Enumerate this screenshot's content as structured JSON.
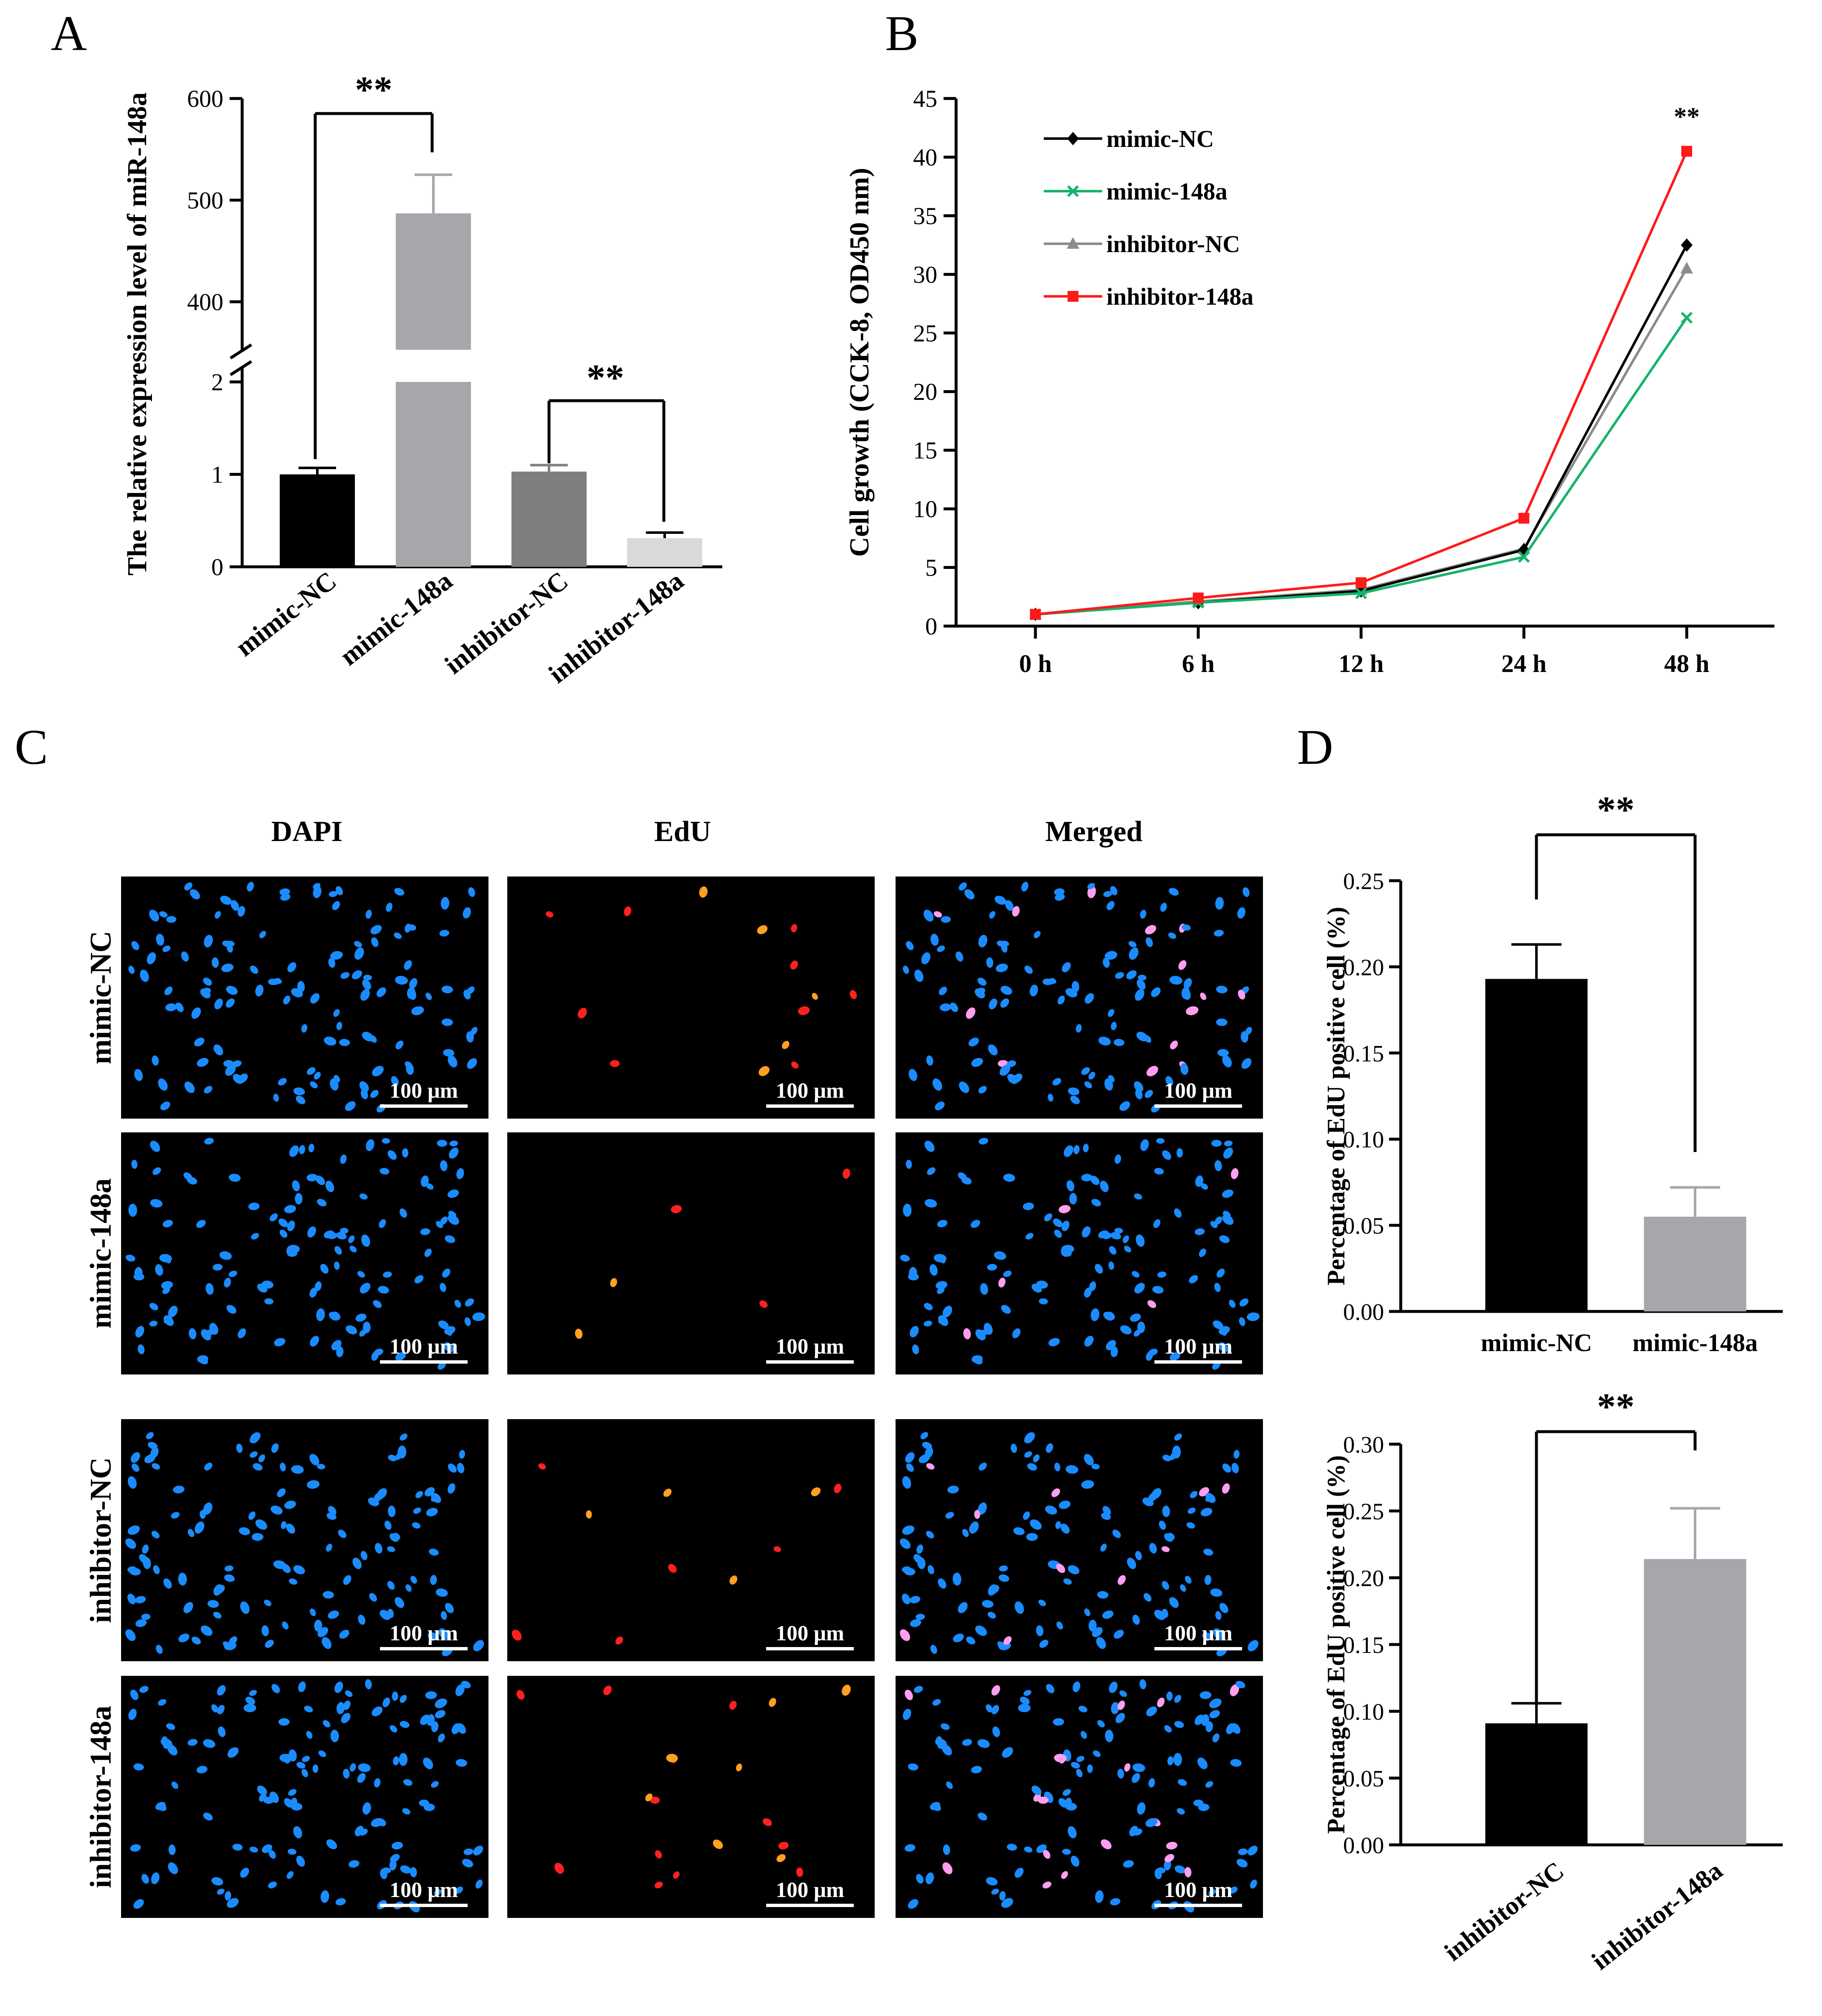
{
  "chart_data": [
    {
      "id": "A",
      "panel_letter": "A",
      "type": "bar",
      "ylabel": "The relative expression level of miR-148a",
      "categories": [
        "mimic-NC",
        "mimic-148a",
        "inhibitor-NC",
        "inhibitor-148a"
      ],
      "values": [
        1.0,
        487,
        1.03,
        0.31
      ],
      "errors": [
        0.07,
        38,
        0.07,
        0.06
      ],
      "colors": [
        "#000000",
        "#a6a6ab",
        "#7f7f7f",
        "#d9d9d9"
      ],
      "broken_axis": true,
      "lower_range": [
        0,
        2
      ],
      "lower_ticks": [
        "0",
        "1",
        "2"
      ],
      "upper_range": [
        340,
        600
      ],
      "upper_ticks": [
        "400",
        "500",
        "600"
      ],
      "significance": [
        {
          "between": [
            0,
            1
          ],
          "label": "**"
        },
        {
          "between": [
            2,
            3
          ],
          "label": "**"
        }
      ]
    },
    {
      "id": "B",
      "panel_letter": "B",
      "type": "line",
      "ylabel": "Cell growth (CCK-8, OD450 nm)",
      "categories": [
        "0 h",
        "6 h",
        "12 h",
        "24 h",
        "48 h"
      ],
      "ylim": [
        0,
        45
      ],
      "yticks": [
        "0",
        "5",
        "10",
        "15",
        "20",
        "25",
        "30",
        "35",
        "40",
        "45"
      ],
      "legend_position": "top-left",
      "series": [
        {
          "name": "mimic-NC",
          "values": [
            1.0,
            2.0,
            3.0,
            6.5,
            32.5
          ],
          "color": "#000000",
          "marker": "diamond"
        },
        {
          "name": "mimic-148a",
          "values": [
            1.0,
            2.0,
            2.8,
            5.9,
            26.3
          ],
          "color": "#16b36b",
          "marker": "cross"
        },
        {
          "name": "inhibitor-NC",
          "values": [
            1.0,
            2.1,
            3.1,
            6.6,
            30.5
          ],
          "color": "#8c8c8c",
          "marker": "triangle"
        },
        {
          "name": "inhibitor-148a",
          "values": [
            1.0,
            2.4,
            3.7,
            9.2,
            40.5
          ],
          "color": "#ff1a1a",
          "marker": "square"
        }
      ],
      "annotation": {
        "category": "48 h",
        "label": "**"
      }
    },
    {
      "id": "D1",
      "panel_letter": "D",
      "type": "bar",
      "ylabel": "Percentage of EdU  positive cell (%)",
      "categories": [
        "mimic-NC",
        "mimic-148a"
      ],
      "values": [
        0.193,
        0.055
      ],
      "errors": [
        0.02,
        0.017
      ],
      "colors": [
        "#000000",
        "#a6a6ab"
      ],
      "ylim": [
        0,
        0.25
      ],
      "yticks": [
        "0.00",
        "0.05",
        "0.10",
        "0.15",
        "0.20",
        "0.25"
      ],
      "significance": [
        {
          "between": [
            0,
            1
          ],
          "label": "**"
        }
      ]
    },
    {
      "id": "D2",
      "type": "bar",
      "ylabel": "Percentage of EdU  positive cell (%)",
      "categories": [
        "inhibitor-NC",
        "inhibitor-148a"
      ],
      "values": [
        0.091,
        0.214
      ],
      "errors": [
        0.015,
        0.038
      ],
      "colors": [
        "#000000",
        "#a6a6ab"
      ],
      "ylim": [
        0,
        0.3
      ],
      "yticks": [
        "0.00",
        "0.05",
        "0.10",
        "0.15",
        "0.20",
        "0.25",
        "0.30"
      ],
      "significance": [
        {
          "between": [
            0,
            1
          ],
          "label": "**"
        }
      ]
    }
  ],
  "panel_c": {
    "panel_letter": "C",
    "columns": [
      "DAPI",
      "EdU",
      "Merged"
    ],
    "rows": [
      "mimic-NC",
      "mimic-148a",
      "inhibitor-NC",
      "inhibitor-148a"
    ],
    "scale_bar_label": "100 μm",
    "edu_positive_counts": [
      14,
      5,
      10,
      22
    ],
    "colors": {
      "background": "#000000",
      "dapi": "#1a8cff",
      "edu": "#ff2020",
      "edu_bright": "#ffa020",
      "merged_positive": "#ff9ef0"
    }
  }
}
